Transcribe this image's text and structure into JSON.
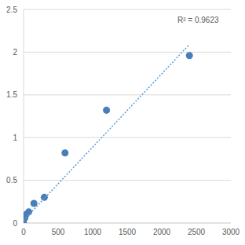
{
  "chart_data": {
    "type": "scatter",
    "annotations": [
      "R² = 0.9623"
    ],
    "series": [
      {
        "type": "scatter",
        "color": "#4a7ebb",
        "marker": "circle",
        "x": [
          0,
          18.75,
          37.5,
          75,
          150,
          300,
          600,
          1200,
          2400
        ],
        "values": [
          0.0,
          0.06,
          0.1,
          0.13,
          0.23,
          0.3,
          0.82,
          1.32,
          1.96
        ]
      },
      {
        "type": "line",
        "color": "#5b9bd5",
        "line_style": "dotted",
        "x": [
          0,
          2400
        ],
        "values": [
          0.03,
          2.09
        ]
      }
    ],
    "xlim": [
      0,
      3000
    ],
    "xticks": [
      0,
      500,
      1000,
      1500,
      2000,
      2500,
      3000
    ],
    "ylim": [
      0,
      2.5
    ],
    "yticks": [
      0,
      0.5,
      1,
      1.5,
      2,
      2.5
    ],
    "grid": true
  }
}
